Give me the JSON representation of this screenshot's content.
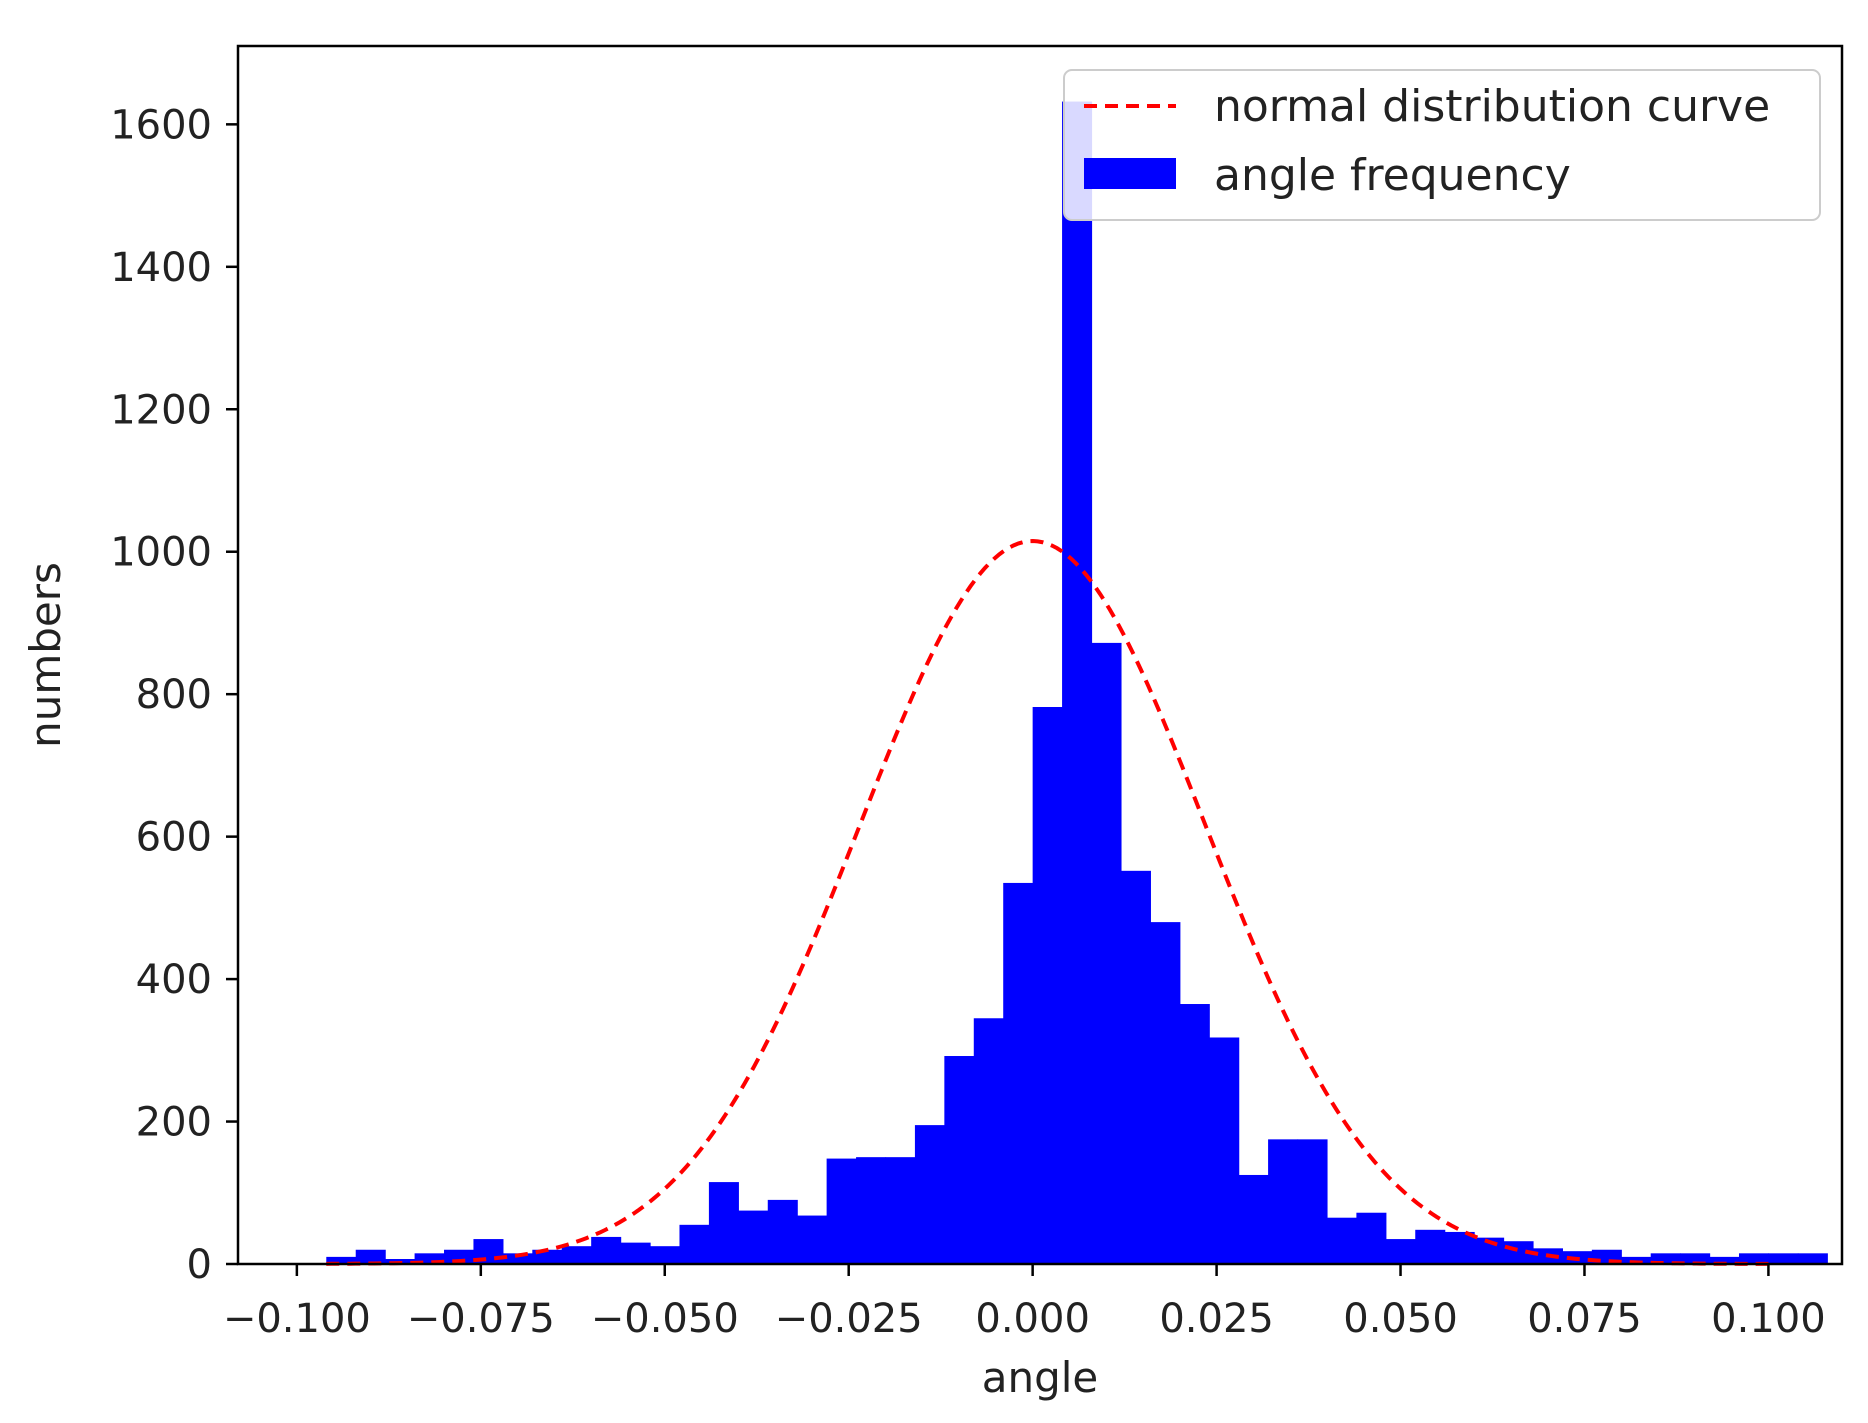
{
  "chart_data": {
    "type": "bar",
    "subtype": "histogram",
    "title": "",
    "xlabel": "angle",
    "ylabel": "numbers",
    "xlim": [
      -0.108,
      0.11
    ],
    "ylim": [
      0,
      1710
    ],
    "grid": false,
    "legend_position": "top-right",
    "x_ticks": [
      -0.1,
      -0.075,
      -0.05,
      -0.025,
      0.0,
      0.025,
      0.05,
      0.075,
      0.1
    ],
    "x_tick_labels": [
      "−0.100",
      "−0.075",
      "−0.050",
      "−0.025",
      "0.000",
      "0.025",
      "0.050",
      "0.075",
      "0.100"
    ],
    "y_ticks": [
      0,
      200,
      400,
      600,
      800,
      1000,
      1200,
      1400,
      1600
    ],
    "y_tick_labels": [
      "0",
      "200",
      "400",
      "600",
      "800",
      "1000",
      "1200",
      "1400",
      "1600"
    ],
    "series": [
      {
        "name": "angle frequency",
        "kind": "histogram",
        "color": "#0000ff",
        "bin_start": -0.096,
        "bin_width": 0.004,
        "values": [
          10,
          20,
          7,
          15,
          20,
          35,
          15,
          20,
          25,
          38,
          30,
          25,
          55,
          115,
          75,
          90,
          68,
          148,
          150,
          150,
          195,
          292,
          345,
          535,
          782,
          1632,
          872,
          552,
          480,
          365,
          318,
          125,
          175,
          175,
          65,
          72,
          35,
          48,
          45,
          37,
          32,
          22,
          18,
          20,
          10,
          15,
          15,
          10,
          15,
          15,
          15
        ]
      },
      {
        "name": "normal distribution curve",
        "kind": "line",
        "style": "dashed",
        "color": "#ff0000",
        "mu": 0.0,
        "sigma": 0.0235,
        "peak": 1015,
        "x_range": [
          -0.096,
          0.1
        ]
      }
    ]
  }
}
